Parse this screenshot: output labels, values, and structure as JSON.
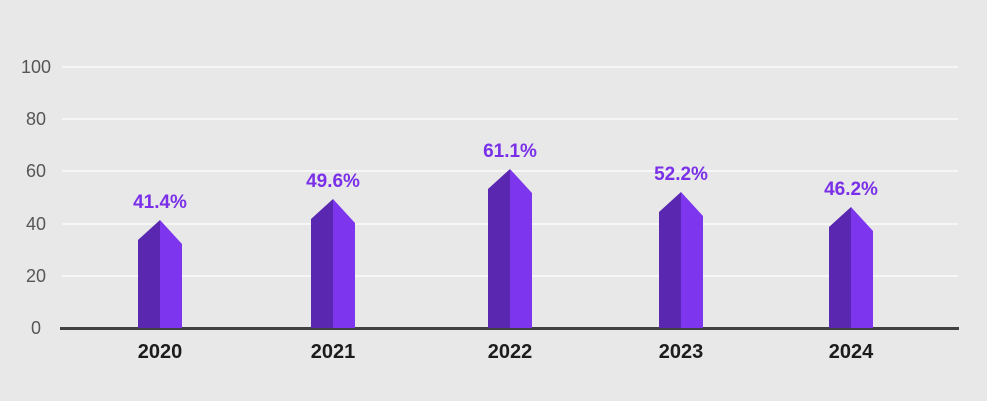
{
  "chart_data": {
    "type": "bar",
    "categories": [
      "2020",
      "2021",
      "2022",
      "2023",
      "2024"
    ],
    "values": [
      41.4,
      49.6,
      61.1,
      52.2,
      46.2
    ],
    "data_labels": [
      "41.4%",
      "49.6%",
      "61.1%",
      "52.2%",
      "46.2%"
    ],
    "title": "",
    "xlabel": "",
    "ylabel": "",
    "ylim": [
      0,
      100
    ],
    "yticks": [
      {
        "value": 100,
        "label": "100"
      },
      {
        "value": 80,
        "label": "80"
      },
      {
        "value": 60,
        "label": "60"
      },
      {
        "value": 40,
        "label": "40"
      },
      {
        "value": 20,
        "label": "20"
      },
      {
        "value": 0,
        "label": "0"
      }
    ],
    "grid": true,
    "legend": false,
    "bar_style": "faceted-obelisk",
    "colors": {
      "background": "#e8e8e8",
      "bar_left_face": "#5927b0",
      "bar_right_face": "#7d36ee",
      "value_label": "#7a30e8",
      "gridline": "#f6f6f6",
      "axis_line": "#414141",
      "ytick_text": "#565656",
      "xtick_text": "#1c1c1c"
    }
  }
}
